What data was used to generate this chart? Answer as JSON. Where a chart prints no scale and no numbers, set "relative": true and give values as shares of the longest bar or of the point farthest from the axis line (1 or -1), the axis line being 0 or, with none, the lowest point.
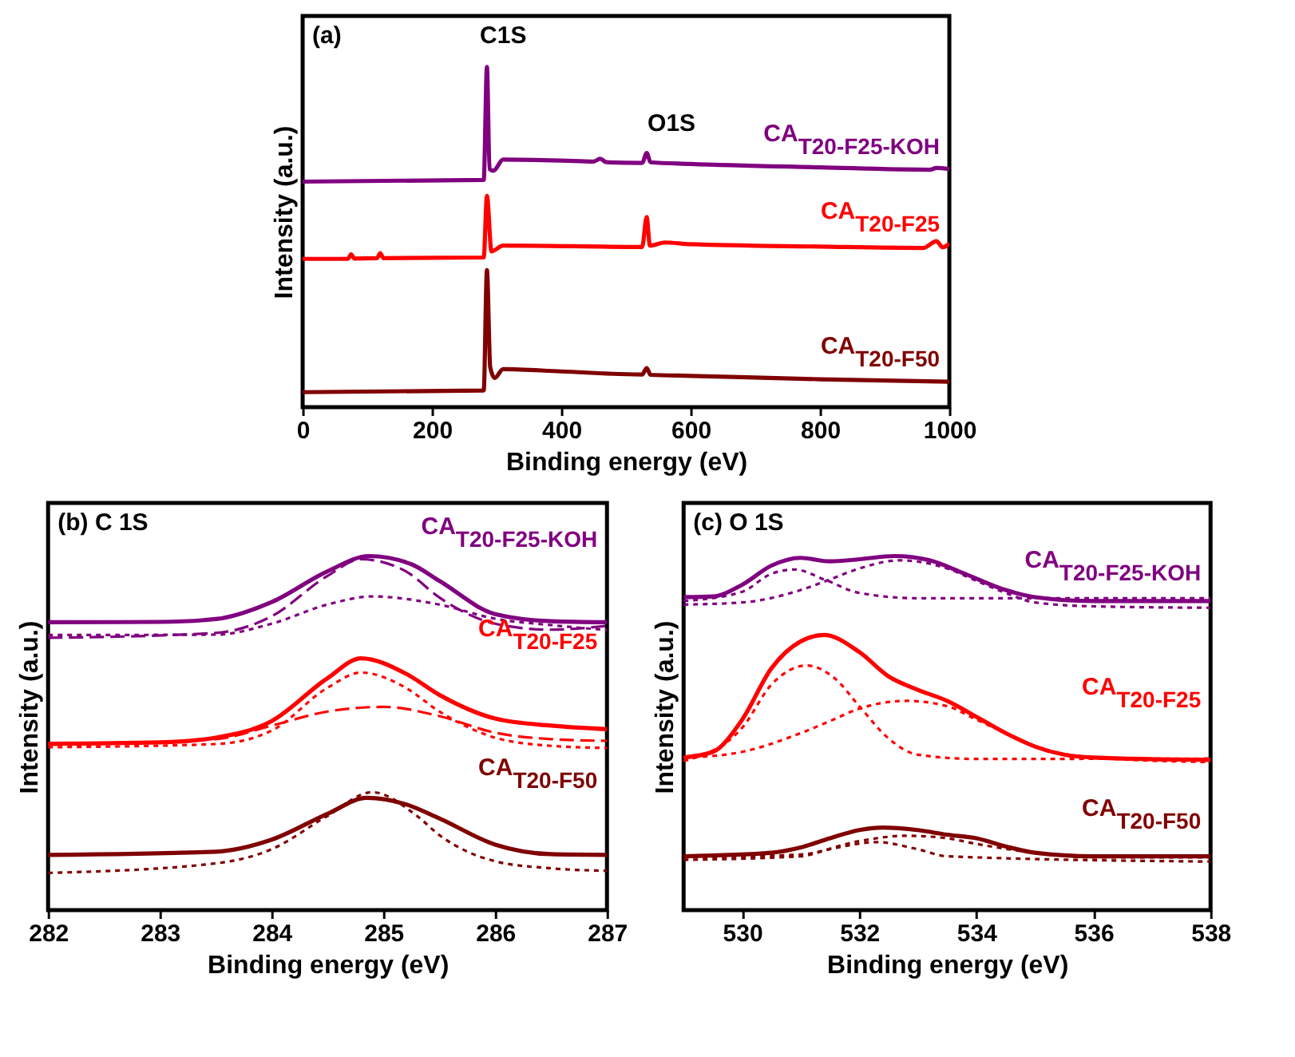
{
  "chart_data": [
    {
      "type": "line",
      "relative": true,
      "xlabel": "Binding energy (eV)",
      "ylabel": "Intensity (a.u.)",
      "xlim": [
        0,
        1000
      ],
      "xticks": [
        0,
        200,
        400,
        600,
        800,
        1000
      ],
      "annotations": [
        "(a)",
        "C1S",
        "O1S"
      ],
      "series": [
        {
          "name": "CA$_{T20-F25-KOH}$",
          "color": "#800080",
          "line_style": "solid",
          "x": [
            0,
            280,
            285,
            289,
            295,
            310,
            400,
            450,
            460,
            470,
            525,
            532,
            538,
            600,
            800,
            970,
            980,
            1000
          ],
          "values": [
            0.663,
            0.668,
            1.0,
            0.7,
            0.695,
            0.728,
            0.725,
            0.722,
            0.73,
            0.72,
            0.718,
            0.747,
            0.72,
            0.715,
            0.705,
            0.698,
            0.703,
            0.7
          ]
        },
        {
          "name": "CA$_{T20-F25}$",
          "color": "#ff0000",
          "line_style": "solid",
          "x": [
            0,
            70,
            75,
            80,
            115,
            120,
            125,
            280,
            285,
            292,
            310,
            525,
            532,
            537,
            560,
            600,
            800,
            960,
            980,
            990,
            1000
          ],
          "values": [
            0.436,
            0.436,
            0.449,
            0.437,
            0.438,
            0.453,
            0.438,
            0.44,
            0.621,
            0.458,
            0.475,
            0.471,
            0.559,
            0.475,
            0.484,
            0.479,
            0.472,
            0.468,
            0.488,
            0.47,
            0.481
          ]
        },
        {
          "name": "CA$_{T20-F50}$",
          "color": "#800000",
          "line_style": "solid",
          "x": [
            0,
            280,
            285,
            290,
            297,
            310,
            400,
            525,
            532,
            538,
            600,
            800,
            1000
          ],
          "values": [
            0.044,
            0.049,
            0.403,
            0.118,
            0.086,
            0.112,
            0.105,
            0.096,
            0.115,
            0.095,
            0.092,
            0.082,
            0.075
          ]
        }
      ]
    },
    {
      "type": "line",
      "relative": true,
      "xlabel": "Binding energy (eV)",
      "ylabel": "Intensity (a.u.)",
      "xlim": [
        282,
        287
      ],
      "xticks": [
        282,
        283,
        284,
        285,
        286,
        287
      ],
      "annotations": [
        "(b) C 1S"
      ],
      "series": [
        {
          "color": "#800080",
          "line_style": "dashed",
          "x": [
            282,
            283.5,
            284,
            284.5,
            284.8,
            285.2,
            285.5,
            286,
            286.5,
            287
          ],
          "values": [
            0.769,
            0.783,
            0.83,
            0.944,
            0.991,
            0.957,
            0.883,
            0.809,
            0.792,
            0.803
          ]
        },
        {
          "color": "#800080",
          "line_style": "dotted",
          "x": [
            282,
            283.5,
            284,
            284.5,
            284.9,
            285.5,
            286,
            286.5,
            287
          ],
          "values": [
            0.777,
            0.778,
            0.809,
            0.863,
            0.886,
            0.863,
            0.823,
            0.805,
            0.791
          ]
        },
        {
          "name": "CA$_{T20-F25-KOH}$",
          "color": "#800080",
          "line_style": "solid",
          "x": [
            282,
            283,
            283.5,
            284,
            284.5,
            284.87,
            285.25,
            285.5,
            286,
            286.5,
            287
          ],
          "values": [
            0.813,
            0.814,
            0.822,
            0.87,
            0.957,
            1.0,
            0.977,
            0.93,
            0.836,
            0.816,
            0.813
          ]
        },
        {
          "color": "#ff0000",
          "line_style": "dashed",
          "x": [
            282,
            283.5,
            284,
            284.5,
            285,
            285.5,
            286,
            286.5,
            287
          ],
          "values": [
            0.467,
            0.483,
            0.521,
            0.561,
            0.574,
            0.548,
            0.501,
            0.483,
            0.478
          ]
        },
        {
          "color": "#ff0000",
          "line_style": "dotted",
          "x": [
            282,
            283.5,
            284,
            284.5,
            284.8,
            285.2,
            285.5,
            286,
            286.5,
            287
          ],
          "values": [
            0.46,
            0.469,
            0.507,
            0.628,
            0.671,
            0.628,
            0.561,
            0.487,
            0.464,
            0.458
          ]
        },
        {
          "name": "CA$_{T20-F25}$",
          "color": "#ff0000",
          "line_style": "solid",
          "x": [
            282,
            283,
            283.5,
            284,
            284.5,
            284.8,
            285.2,
            285.5,
            286,
            286.5,
            287
          ],
          "values": [
            0.47,
            0.474,
            0.487,
            0.534,
            0.655,
            0.711,
            0.668,
            0.608,
            0.541,
            0.521,
            0.511
          ]
        },
        {
          "color": "#800000",
          "line_style": "dotted",
          "x": [
            282,
            283.5,
            284,
            284.5,
            284.9,
            285.3,
            285.5,
            286,
            286.5,
            287
          ],
          "values": [
            0.105,
            0.132,
            0.172,
            0.266,
            0.333,
            0.266,
            0.212,
            0.138,
            0.118,
            0.111
          ]
        },
        {
          "name": "CA$_{T20-F50}$",
          "color": "#800000",
          "line_style": "solid",
          "x": [
            282,
            283.5,
            284,
            284.5,
            284.85,
            285.2,
            285.5,
            286,
            286.5,
            287
          ],
          "values": [
            0.156,
            0.165,
            0.199,
            0.272,
            0.317,
            0.299,
            0.259,
            0.185,
            0.158,
            0.156
          ]
        }
      ]
    },
    {
      "type": "line",
      "relative": true,
      "xlabel": "Binding energy (eV)",
      "ylabel": "Intensity (a.u.)",
      "xlim": [
        529,
        538
      ],
      "xticks": [
        530,
        532,
        534,
        536,
        538
      ],
      "annotations": [
        "(c) O 1S"
      ],
      "series": [
        {
          "color": "#800080",
          "line_style": "dotted",
          "x": [
            529,
            530,
            530.5,
            530.9,
            531.4,
            532,
            533,
            538
          ],
          "values": [
            0.873,
            0.899,
            0.95,
            0.962,
            0.934,
            0.896,
            0.881,
            0.881
          ]
        },
        {
          "color": "#800080",
          "line_style": "dotted",
          "x": [
            529,
            530,
            531,
            531.5,
            532,
            532.7,
            533.5,
            534,
            534.5,
            535,
            536,
            538
          ],
          "values": [
            0.863,
            0.869,
            0.904,
            0.934,
            0.965,
            0.988,
            0.965,
            0.93,
            0.896,
            0.869,
            0.858,
            0.854
          ]
        },
        {
          "name": "CA$_{T20-F25-KOH}$",
          "color": "#800080",
          "line_style": "solid",
          "x": [
            529,
            529.5,
            530,
            530.5,
            531,
            531.5,
            532,
            532.6,
            533.2,
            533.8,
            534.5,
            535,
            536,
            538
          ],
          "values": [
            0.884,
            0.886,
            0.919,
            0.973,
            0.995,
            0.985,
            0.991,
            1.0,
            0.988,
            0.95,
            0.904,
            0.884,
            0.873,
            0.873
          ]
        },
        {
          "color": "#ff0000",
          "line_style": "dotted",
          "x": [
            529,
            530,
            530.5,
            531.1,
            531.6,
            532,
            532.5,
            533,
            534,
            538
          ],
          "values": [
            0.421,
            0.515,
            0.637,
            0.691,
            0.652,
            0.576,
            0.485,
            0.439,
            0.427,
            0.428
          ]
        },
        {
          "color": "#ff0000",
          "line_style": "dotted",
          "x": [
            529,
            530,
            531,
            531.5,
            532,
            532.8,
            533.5,
            534,
            534.5,
            535,
            536,
            538
          ],
          "values": [
            0.43,
            0.447,
            0.5,
            0.534,
            0.569,
            0.591,
            0.576,
            0.538,
            0.5,
            0.462,
            0.431,
            0.418
          ]
        },
        {
          "name": "CA$_{T20-F25}$",
          "color": "#ff0000",
          "line_style": "solid",
          "x": [
            529,
            529.5,
            530,
            530.5,
            531,
            531.4,
            532,
            532.5,
            533,
            533.5,
            534,
            534.5,
            535,
            535.5,
            536,
            538
          ],
          "values": [
            0.431,
            0.447,
            0.538,
            0.683,
            0.759,
            0.777,
            0.729,
            0.66,
            0.622,
            0.591,
            0.546,
            0.5,
            0.462,
            0.439,
            0.431,
            0.424
          ]
        },
        {
          "color": "#800000",
          "line_style": "dotted",
          "x": [
            529,
            531,
            531.5,
            532.3,
            533,
            533.5,
            538
          ],
          "values": [
            0.142,
            0.152,
            0.172,
            0.192,
            0.172,
            0.152,
            0.137
          ]
        },
        {
          "color": "#800000",
          "line_style": "dotted",
          "x": [
            529,
            531,
            532,
            532.8,
            533.5,
            534,
            535,
            536,
            538
          ],
          "values": [
            0.149,
            0.157,
            0.195,
            0.21,
            0.203,
            0.187,
            0.162,
            0.149,
            0.149
          ]
        },
        {
          "name": "CA$_{T20-F50}$",
          "color": "#800000",
          "line_style": "solid",
          "x": [
            529,
            530.5,
            531,
            531.5,
            532,
            532.4,
            533,
            533.5,
            534,
            534.5,
            535,
            536,
            538
          ],
          "values": [
            0.152,
            0.162,
            0.177,
            0.203,
            0.226,
            0.233,
            0.226,
            0.213,
            0.203,
            0.18,
            0.162,
            0.152,
            0.152
          ]
        }
      ]
    }
  ]
}
